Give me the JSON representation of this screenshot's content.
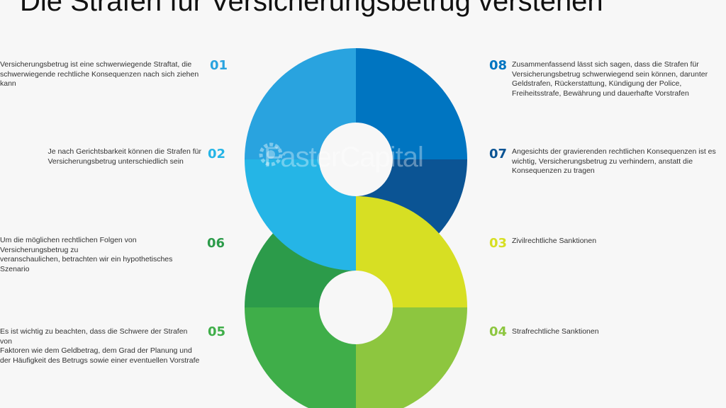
{
  "title": "Die Strafen für Versicherungsbetrug verstehen",
  "watermark": "FasterCapital",
  "colors": {
    "s01": "#29a3df",
    "s02": "#25b5e6",
    "s06": "#2c9b4a",
    "s05": "#3fae49",
    "s08": "#0075c1",
    "s07": "#0b5494",
    "s03": "#d7df23",
    "s04": "#8dc63f"
  },
  "items": {
    "i01": {
      "num": "01",
      "text": "Versicherungsbetrug ist eine schwerwiegende Straftat, die\nschwerwiegende rechtliche Konsequenzen nach sich ziehen kann"
    },
    "i02": {
      "num": "02",
      "text": "Je nach Gerichtsbarkeit können die Strafen für\nVersicherungsbetrug unterschiedlich sein"
    },
    "i06": {
      "num": "06",
      "text": "Um die möglichen rechtlichen Folgen von Versicherungsbetrug zu\nveranschaulichen, betrachten wir ein hypothetisches Szenario"
    },
    "i05": {
      "num": "05",
      "text": "Es ist wichtig zu beachten, dass die Schwere der Strafen von\nFaktoren wie dem Geldbetrag, dem Grad der Planung und\nder Häufigkeit des Betrugs sowie einer eventuellen Vorstrafe"
    },
    "i08": {
      "num": "08",
      "text": "Zusammenfassend lässt sich sagen, dass die Strafen für\nVersicherungsbetrug schwerwiegend sein können, darunter\nGeldstrafen, Rückerstattung, Kündigung der Police,\nFreiheitsstrafe, Bewährung und dauerhafte Vorstrafen"
    },
    "i07": {
      "num": "07",
      "text": "Angesichts der gravierenden rechtlichen Konsequenzen ist es\nwichtig, Versicherungsbetrug zu verhindern, anstatt die\nKonsequenzen zu tragen"
    },
    "i03": {
      "num": "03",
      "text": "Zivilrechtliche Sanktionen"
    },
    "i04": {
      "num": "04",
      "text": "Strafrechtliche Sanktionen"
    }
  }
}
